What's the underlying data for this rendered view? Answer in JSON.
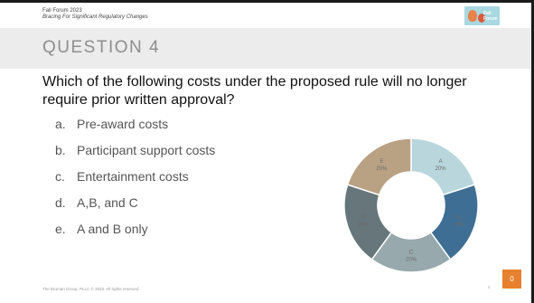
{
  "header": {
    "event": "Fall Forum 2023",
    "subtitle": "Bracing For Significant Regulatory Changes"
  },
  "logo": {
    "icon": "event-logo-icon",
    "bg_color": "#a8d8e0",
    "wordmark": "Fall Forum"
  },
  "slide": {
    "heading": "QUESTION 4",
    "question": "Which of the following costs under the proposed rule will no longer require prior written approval?"
  },
  "options": [
    {
      "letter": "a.",
      "text": "Pre-award costs"
    },
    {
      "letter": "b.",
      "text": "Participant support costs"
    },
    {
      "letter": "c.",
      "text": "Entertainment costs"
    },
    {
      "letter": "d.",
      "text": "A,B, and C"
    },
    {
      "letter": "e.",
      "text": "A and B only"
    }
  ],
  "chart_data": {
    "type": "pie",
    "donut": true,
    "categories": [
      "A",
      "B",
      "C",
      "D",
      "E"
    ],
    "values": [
      20,
      20,
      20,
      20,
      20
    ],
    "value_labels": [
      "20%",
      "20%",
      "20%",
      "20%",
      "20%"
    ],
    "colors": [
      "#b9d6dc",
      "#3e6e93",
      "#98a9ad",
      "#66767a",
      "#b9a183"
    ]
  },
  "footer": {
    "copyright": "The Bruman Group, PLLC © 2023. All rights reserved.",
    "page_number": "5"
  },
  "response_counter": {
    "value": "0",
    "color": "#e7812f"
  }
}
